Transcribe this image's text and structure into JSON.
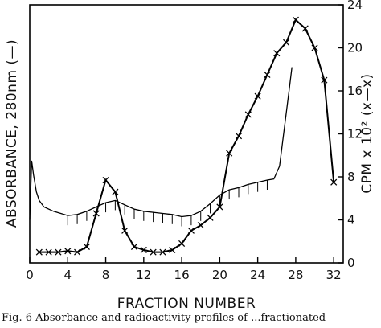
{
  "chart_data": {
    "type": "line",
    "title": "",
    "xlabel": "FRACTION NUMBER",
    "ylabel_left": "ABSORBANCE, 280nm (—)",
    "ylabel_right": "CPM x 10² (x—x)",
    "x_ticks": [
      "0",
      "4",
      "8",
      "12",
      "16",
      "20",
      "24",
      "28",
      "32"
    ],
    "y_right_ticks": [
      "0",
      "4",
      "8",
      "12",
      "16",
      "20",
      "24"
    ],
    "xlim": [
      0,
      33
    ],
    "y_right_lim": [
      0,
      24
    ],
    "grid": false,
    "series": [
      {
        "name": "ABSORBANCE, 280nm",
        "style": "solid",
        "points": [
          [
            0.0,
            4.0
          ],
          [
            0.2,
            9.5
          ],
          [
            0.4,
            8.2
          ],
          [
            0.7,
            6.6
          ],
          [
            1.0,
            5.8
          ],
          [
            1.5,
            5.2
          ],
          [
            2.5,
            4.8
          ],
          [
            4.0,
            4.4
          ],
          [
            5.0,
            4.5
          ],
          [
            6.0,
            4.8
          ],
          [
            7.0,
            5.2
          ],
          [
            8.0,
            5.6
          ],
          [
            9.0,
            5.8
          ],
          [
            10.0,
            5.4
          ],
          [
            11.0,
            5.0
          ],
          [
            12.0,
            4.8
          ],
          [
            13.0,
            4.7
          ],
          [
            14.0,
            4.6
          ],
          [
            15.0,
            4.5
          ],
          [
            16.0,
            4.3
          ],
          [
            17.0,
            4.4
          ],
          [
            18.0,
            4.8
          ],
          [
            19.0,
            5.5
          ],
          [
            20.0,
            6.3
          ],
          [
            21.0,
            6.8
          ],
          [
            22.0,
            7.0
          ],
          [
            23.0,
            7.3
          ],
          [
            24.0,
            7.5
          ],
          [
            25.0,
            7.7
          ],
          [
            25.7,
            7.8
          ],
          [
            26.3,
            9.0
          ],
          [
            26.8,
            12.5
          ],
          [
            27.3,
            16.0
          ],
          [
            27.6,
            18.2
          ]
        ]
      },
      {
        "name": "CPM x 10²",
        "style": "x-markers",
        "points": [
          [
            1,
            1.0
          ],
          [
            2,
            1.0
          ],
          [
            3,
            1.0
          ],
          [
            4,
            1.1
          ],
          [
            5,
            1.0
          ],
          [
            6,
            1.5
          ],
          [
            7,
            4.6
          ],
          [
            8,
            7.7
          ],
          [
            9,
            6.6
          ],
          [
            10,
            3.0
          ],
          [
            11,
            1.5
          ],
          [
            12,
            1.2
          ],
          [
            13,
            1.0
          ],
          [
            14,
            1.0
          ],
          [
            15,
            1.2
          ],
          [
            16,
            1.8
          ],
          [
            17,
            3.0
          ],
          [
            18,
            3.5
          ],
          [
            19,
            4.2
          ],
          [
            20,
            5.2
          ],
          [
            21,
            10.2
          ],
          [
            22,
            11.8
          ],
          [
            23,
            13.8
          ],
          [
            24,
            15.5
          ],
          [
            25,
            17.5
          ],
          [
            26,
            19.5
          ],
          [
            27,
            20.5
          ],
          [
            28,
            22.6
          ],
          [
            29,
            21.8
          ],
          [
            30,
            20.0
          ],
          [
            31,
            17.0
          ],
          [
            32,
            7.5
          ]
        ]
      }
    ]
  },
  "caption": "Fig. 6   Absorbance and radioactivity profiles of ...fractionated"
}
